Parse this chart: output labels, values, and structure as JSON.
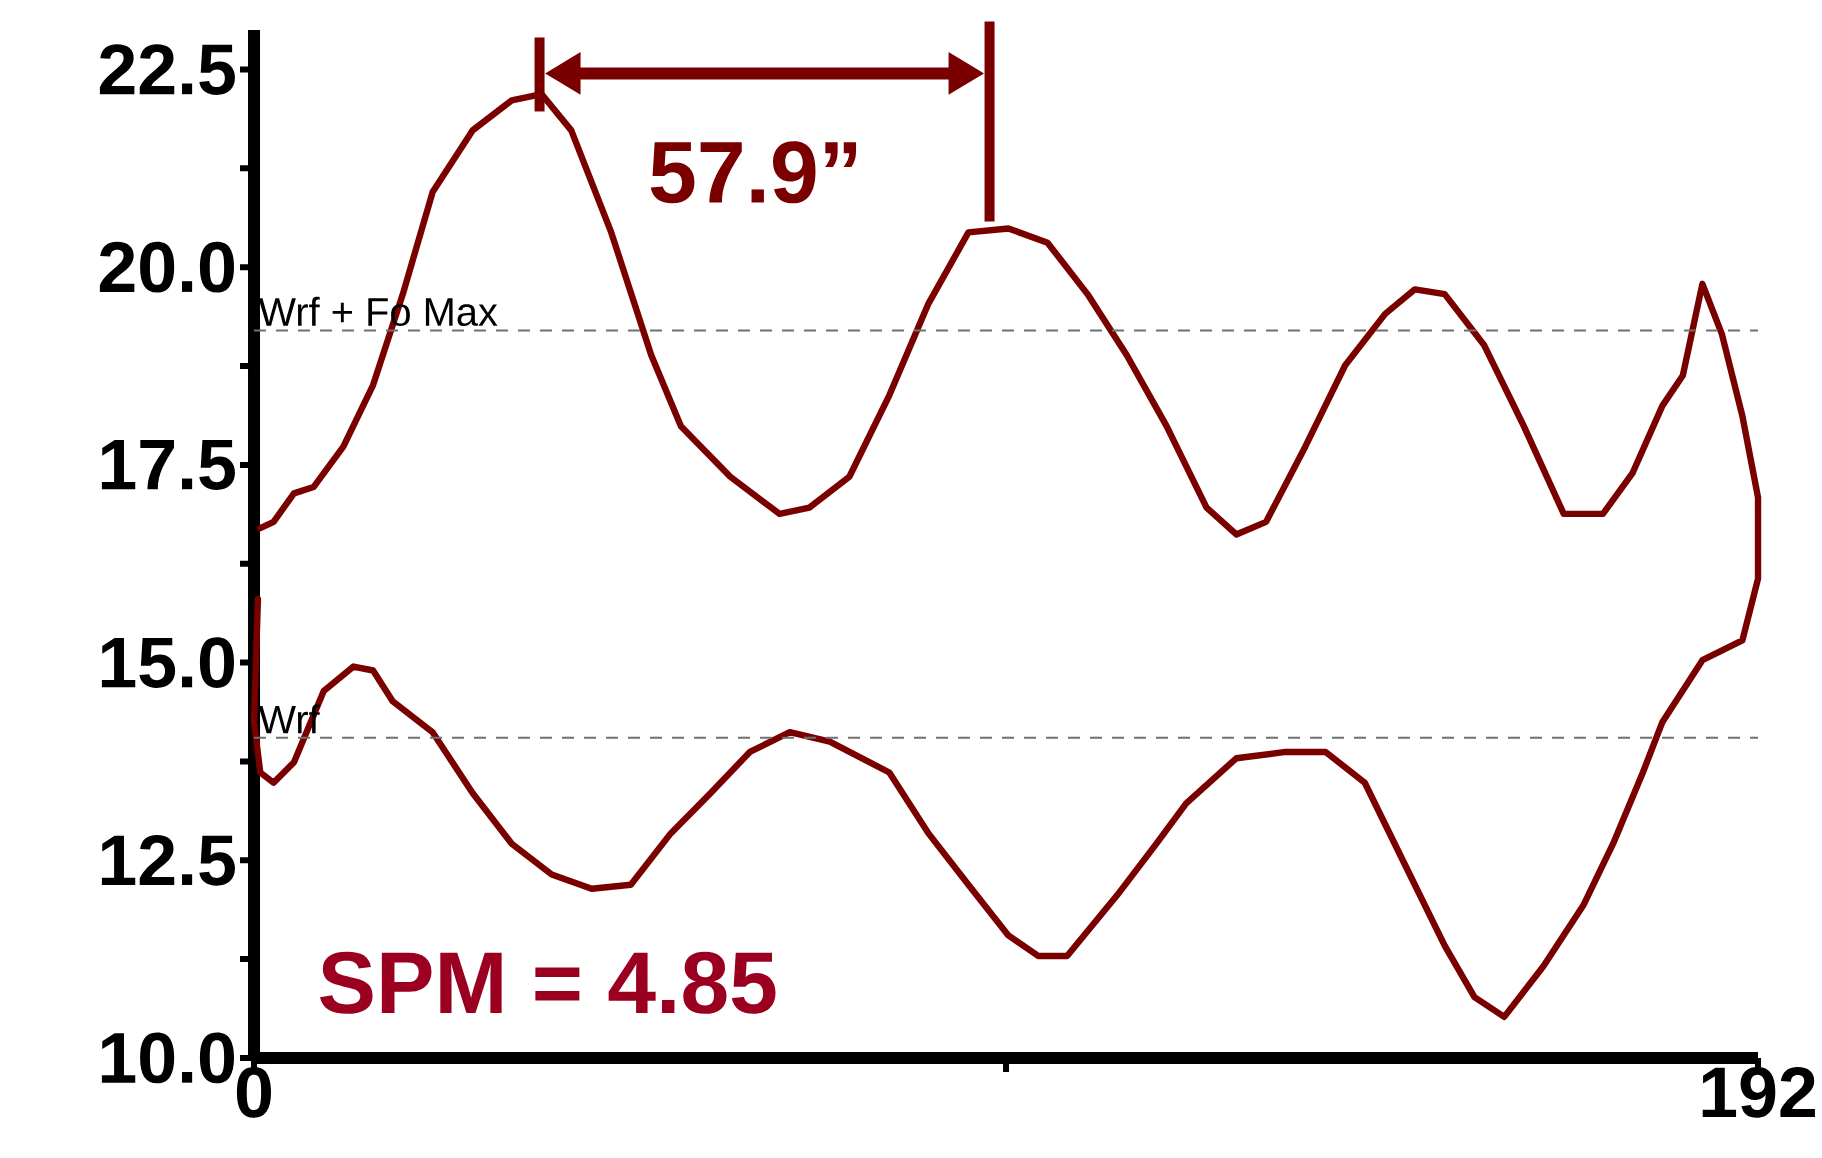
{
  "chart_data": {
    "type": "line",
    "x": [
      0.8,
      2.5,
      5.1,
      7.6,
      11.4,
      15.2,
      19.0,
      22.8,
      27.9,
      32.9,
      36.7,
      40.5,
      45.6,
      50.7,
      54.5,
      60.8,
      67.1,
      70.9,
      76.0,
      81.1,
      86.1,
      91.2,
      96.3,
      101.3,
      106.4,
      111.4,
      116.5,
      121.6,
      125.4,
      129.2,
      134.2,
      139.3,
      144.4,
      148.2,
      152.0,
      157.0,
      162.1,
      167.2,
      172.2,
      176.0,
      179.8,
      182.4,
      184.9,
      187.4,
      190.0,
      192.0,
      192.0,
      190.0,
      184.9,
      179.8,
      177.3,
      173.5,
      169.7,
      164.6,
      159.6,
      155.8,
      152.0,
      146.9,
      141.8,
      136.8,
      131.7,
      125.4,
      119.0,
      115.2,
      110.2,
      103.8,
      100.1,
      96.3,
      91.2,
      86.1,
      81.1,
      73.5,
      68.4,
      63.3,
      58.3,
      53.2,
      48.1,
      43.1,
      38.0,
      32.9,
      27.9,
      22.8,
      17.7,
      15.2,
      12.7,
      8.9,
      5.1,
      2.5,
      0.8,
      0.0,
      0.5
    ],
    "series": [
      {
        "color": "#7a0000",
        "values": [
          16.7,
          16.78,
          17.14,
          17.22,
          17.73,
          18.51,
          19.66,
          20.95,
          21.73,
          22.11,
          22.19,
          21.73,
          20.44,
          18.89,
          17.99,
          17.35,
          16.88,
          16.96,
          17.35,
          18.38,
          19.54,
          20.44,
          20.49,
          20.31,
          19.66,
          18.89,
          17.99,
          16.96,
          16.62,
          16.78,
          17.73,
          18.76,
          19.41,
          19.72,
          19.66,
          19.02,
          17.99,
          16.88,
          16.88,
          17.4,
          18.25,
          18.63,
          19.79,
          19.15,
          18.12,
          17.09,
          16.06,
          15.28,
          15.03,
          14.25,
          13.61,
          12.71,
          11.93,
          11.16,
          10.52,
          10.77,
          11.42,
          12.45,
          13.48,
          13.87,
          13.87,
          13.79,
          13.22,
          12.71,
          12.06,
          11.29,
          11.29,
          11.55,
          12.19,
          12.84,
          13.61,
          14.0,
          14.12,
          13.87,
          13.35,
          12.84,
          12.19,
          12.14,
          12.32,
          12.71,
          13.35,
          14.12,
          14.51,
          14.9,
          14.95,
          14.64,
          13.74,
          13.48,
          13.61,
          14.25,
          15.8
        ]
      }
    ],
    "xlim": [
      0,
      192
    ],
    "ylim": [
      10,
      23
    ],
    "xticks": [
      0,
      {
        "value": 96,
        "label": null
      },
      192
    ],
    "yticks": [
      {
        "value": 10,
        "label": "10.0"
      },
      {
        "value": 11.25,
        "label": null
      },
      {
        "value": 12.5,
        "label": "12.5"
      },
      {
        "value": 13.75,
        "label": null
      },
      {
        "value": 15,
        "label": "15.0"
      },
      {
        "value": 16.25,
        "label": null
      },
      {
        "value": 17.5,
        "label": "17.5"
      },
      {
        "value": 18.75,
        "label": null
      },
      {
        "value": 20,
        "label": "20.0"
      },
      {
        "value": 21.25,
        "label": null
      },
      {
        "value": 22.5,
        "label": "22.5"
      }
    ],
    "ref_lines": [
      {
        "axis": "y",
        "value": 19.2,
        "label": "Wrf + Fo Max",
        "color": "#707070",
        "line_style": "dashed"
      },
      {
        "axis": "y",
        "value": 14.05,
        "label": "Wrf",
        "color": "#707070",
        "line_style": "dashed"
      }
    ],
    "annotations": [
      "57.9”",
      "SPM = 4.85"
    ],
    "marker": "none",
    "line_style": "solid"
  }
}
